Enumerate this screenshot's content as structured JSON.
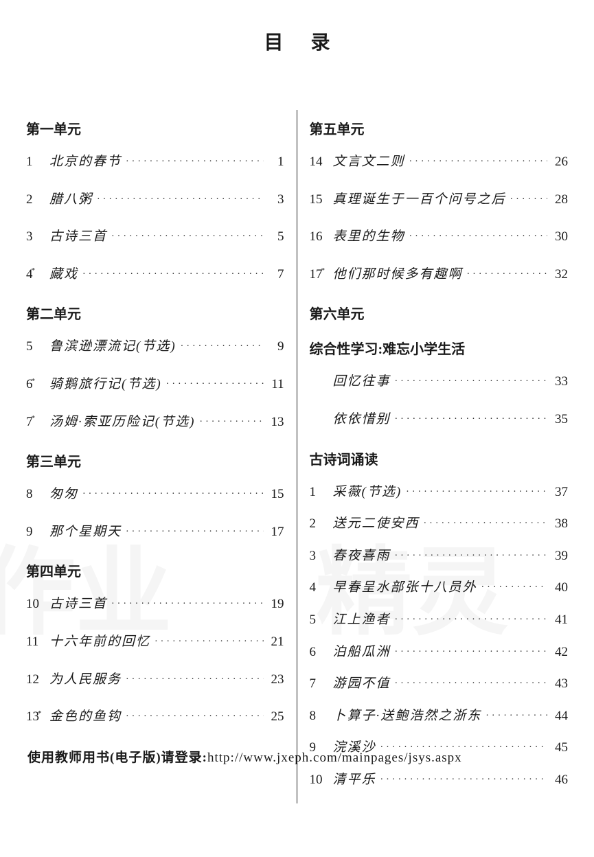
{
  "title": "目录",
  "footer_label": "使用教师用书(电子版)请登录:",
  "footer_url": "http://www.jxeph.com/mainpages/jsys.aspx",
  "watermark_left": "作业",
  "watermark_right": "精灵",
  "left_column": [
    {
      "type": "heading",
      "text": "第一单元"
    },
    {
      "type": "entry",
      "num": "1",
      "label": "北京的春节",
      "page": "1"
    },
    {
      "type": "entry",
      "num": "2",
      "label": "腊八粥",
      "page": "3"
    },
    {
      "type": "entry",
      "num": "3",
      "label": "古诗三首",
      "page": "5"
    },
    {
      "type": "entry",
      "num": "4",
      "star": true,
      "label": "藏戏",
      "page": "7"
    },
    {
      "type": "heading",
      "text": "第二单元"
    },
    {
      "type": "entry",
      "num": "5",
      "label": "鲁滨逊漂流记(节选)",
      "page": "9"
    },
    {
      "type": "entry",
      "num": "6",
      "star": true,
      "label": "骑鹅旅行记(节选)",
      "page": "11"
    },
    {
      "type": "entry",
      "num": "7",
      "star": true,
      "label": "汤姆·索亚历险记(节选)",
      "page": "13"
    },
    {
      "type": "heading",
      "text": "第三单元"
    },
    {
      "type": "entry",
      "num": "8",
      "label": "匆匆",
      "page": "15"
    },
    {
      "type": "entry",
      "num": "9",
      "label": "那个星期天",
      "page": "17"
    },
    {
      "type": "heading",
      "text": "第四单元"
    },
    {
      "type": "entry",
      "num": "10",
      "label": "古诗三首",
      "page": "19"
    },
    {
      "type": "entry",
      "num": "11",
      "label": "十六年前的回忆",
      "page": "21"
    },
    {
      "type": "entry",
      "num": "12",
      "label": "为人民服务",
      "page": "23"
    },
    {
      "type": "entry",
      "num": "13",
      "star": true,
      "label": "金色的鱼钩",
      "page": "25"
    }
  ],
  "right_column": [
    {
      "type": "heading",
      "text": "第五单元"
    },
    {
      "type": "entry",
      "num": "14",
      "label": "文言文二则",
      "page": "26"
    },
    {
      "type": "entry",
      "num": "15",
      "label": "真理诞生于一百个问号之后",
      "page": "28"
    },
    {
      "type": "entry",
      "num": "16",
      "label": "表里的生物",
      "page": "30"
    },
    {
      "type": "entry",
      "num": "17",
      "star": true,
      "label": "他们那时候多有趣啊",
      "page": "32"
    },
    {
      "type": "heading",
      "text": "第六单元"
    },
    {
      "type": "subheading",
      "text": "综合性学习:难忘小学生活"
    },
    {
      "type": "entry",
      "indent": true,
      "label": "回忆往事",
      "page": "33"
    },
    {
      "type": "entry",
      "indent": true,
      "label": "依依惜别",
      "page": "35"
    },
    {
      "type": "subheading",
      "text": "古诗词诵读"
    },
    {
      "type": "entry",
      "tight": true,
      "num": "1",
      "label": "采薇(节选)",
      "page": "37"
    },
    {
      "type": "entry",
      "tight": true,
      "num": "2",
      "label": "送元二使安西",
      "page": "38"
    },
    {
      "type": "entry",
      "tight": true,
      "num": "3",
      "label": "春夜喜雨",
      "page": "39"
    },
    {
      "type": "entry",
      "tight": true,
      "num": "4",
      "label": "早春呈水部张十八员外",
      "page": "40"
    },
    {
      "type": "entry",
      "tight": true,
      "num": "5",
      "label": "江上渔者",
      "page": "41"
    },
    {
      "type": "entry",
      "tight": true,
      "num": "6",
      "label": "泊船瓜洲",
      "page": "42"
    },
    {
      "type": "entry",
      "tight": true,
      "num": "7",
      "label": "游园不值",
      "page": "43"
    },
    {
      "type": "entry",
      "tight": true,
      "num": "8",
      "label": "卜算子·送鲍浩然之浙东",
      "page": "44"
    },
    {
      "type": "entry",
      "tight": true,
      "num": "9",
      "label": "浣溪沙",
      "page": "45"
    },
    {
      "type": "entry",
      "tight": true,
      "num": "10",
      "label": "清平乐",
      "page": "46"
    }
  ]
}
